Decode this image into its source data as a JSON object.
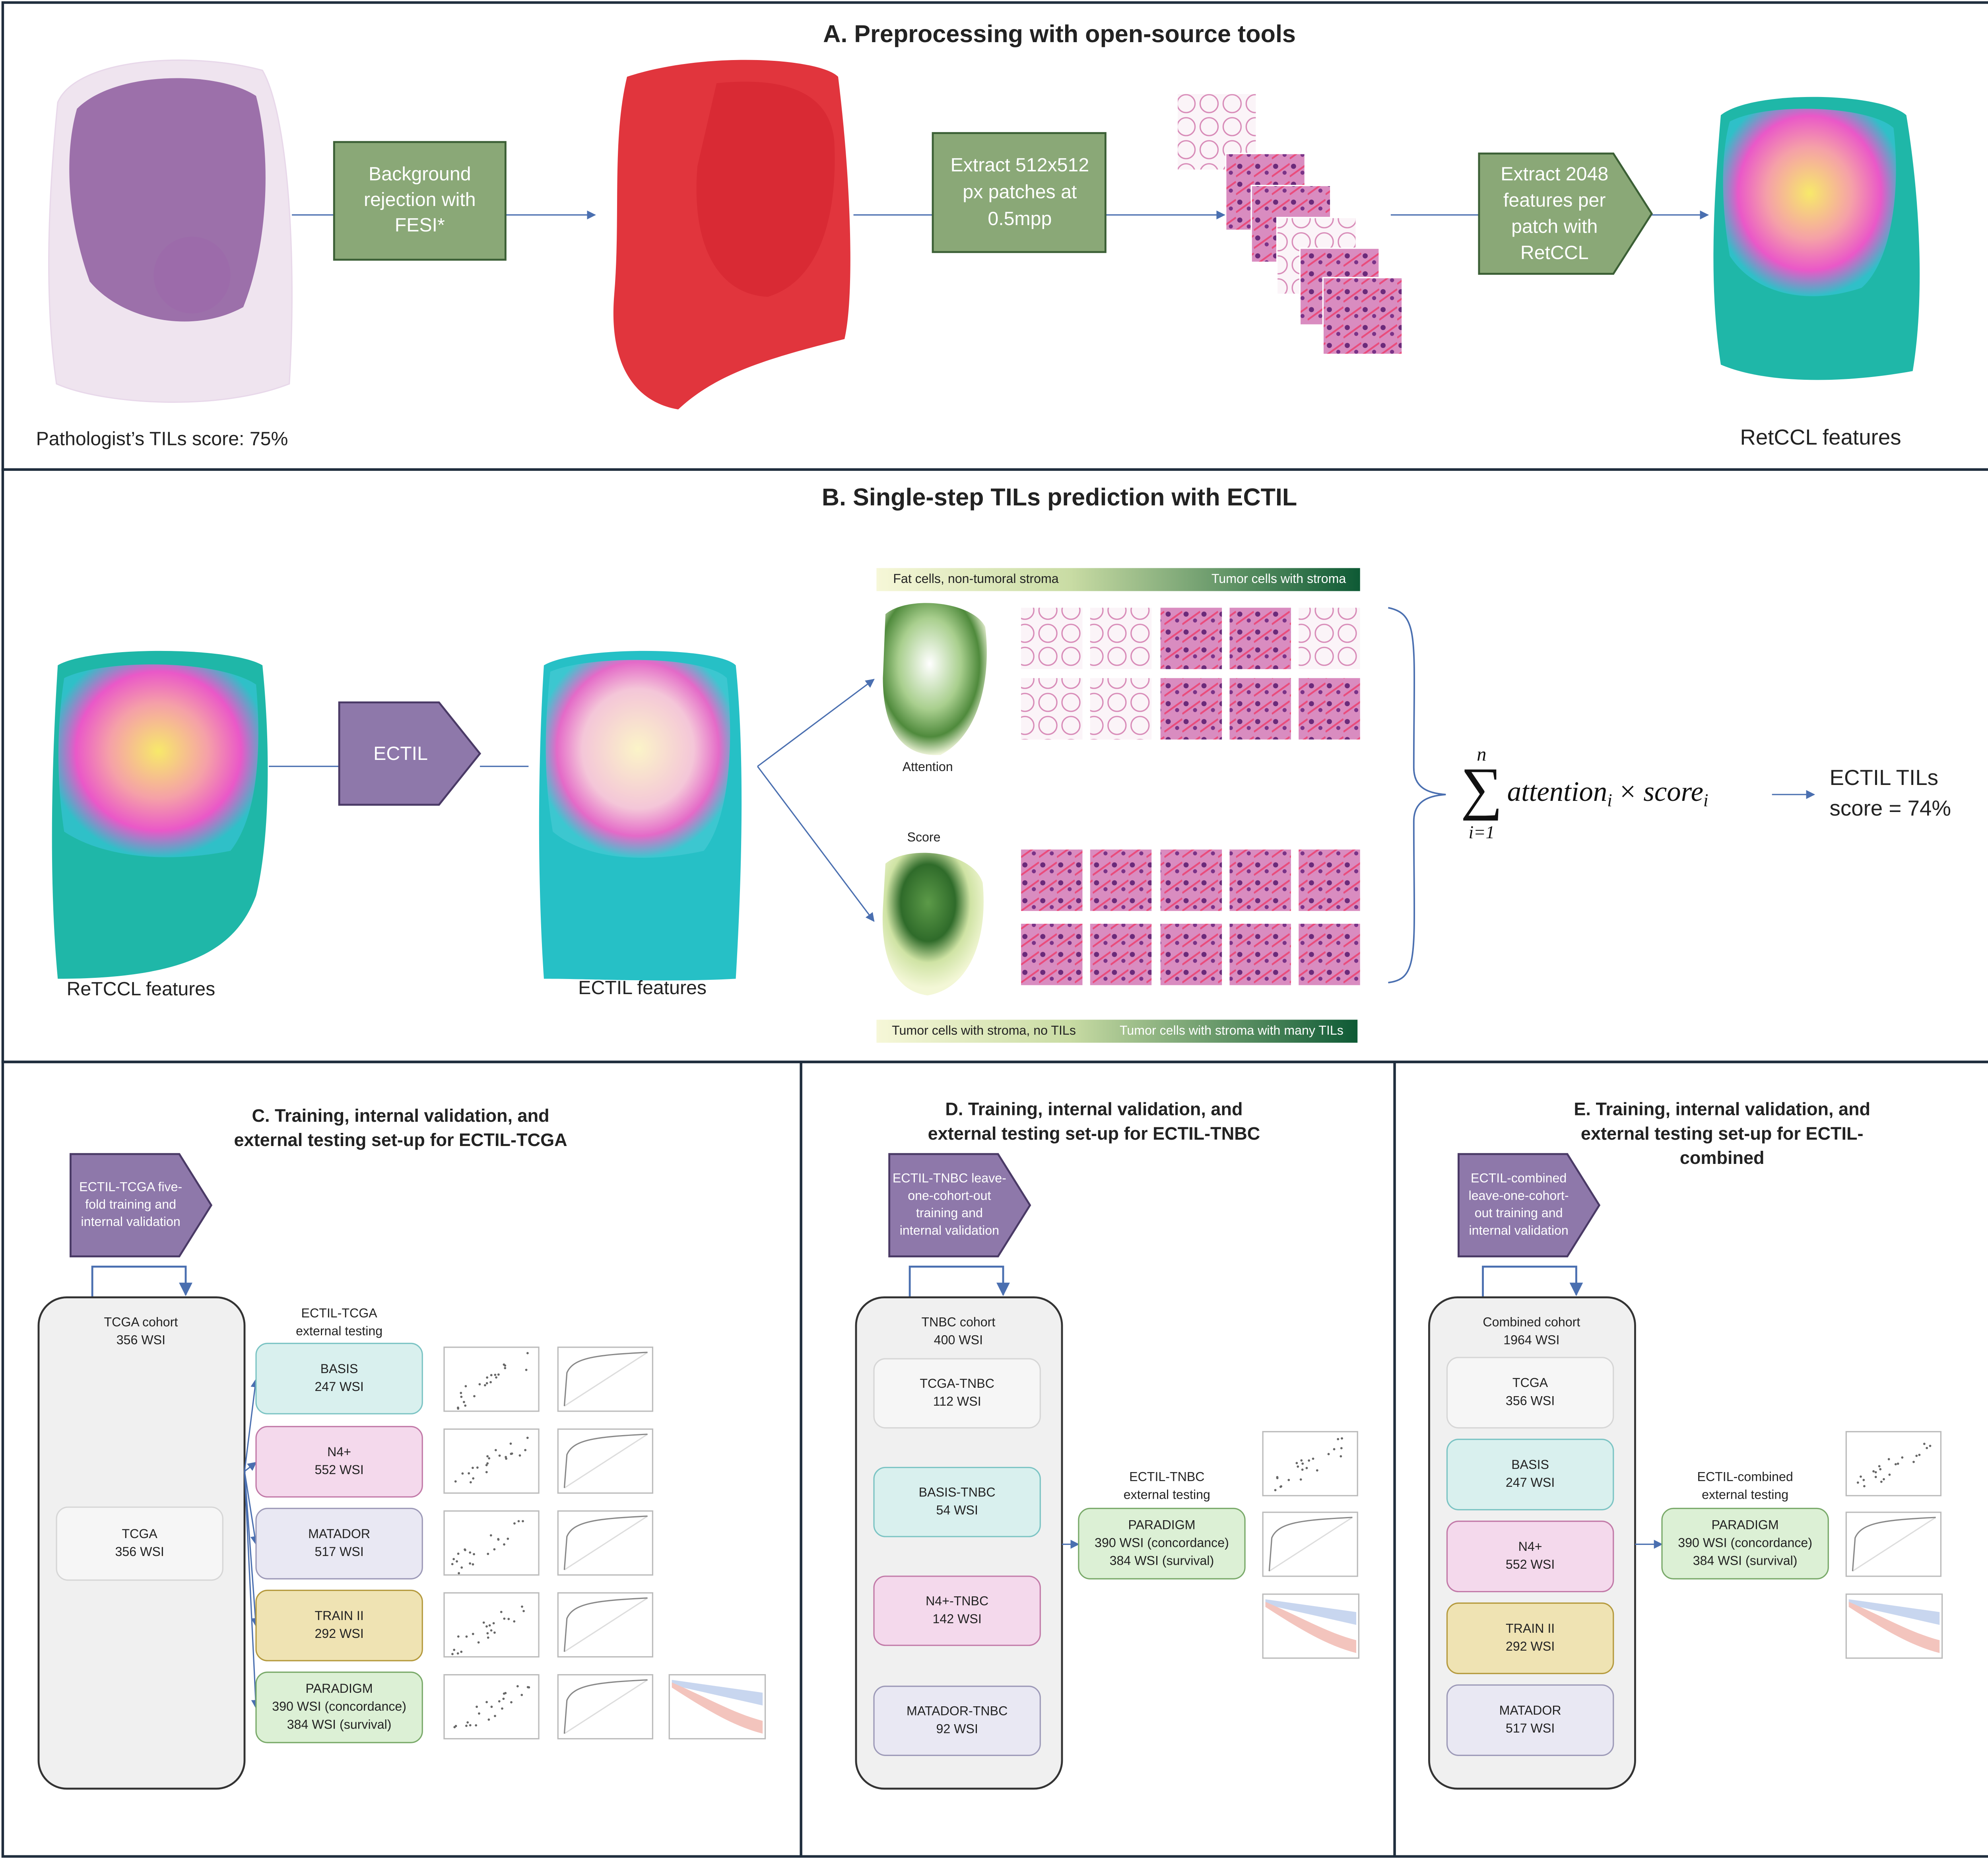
{
  "panel_a": {
    "title": "A. Preprocessing with open-source tools",
    "steps": [
      [
        "Background",
        "rejection with",
        "FESI*"
      ],
      [
        "Extract 512x512",
        "px patches at",
        "0.5mpp"
      ],
      [
        "Extract 2048",
        "features per",
        "patch with",
        "RetCCL"
      ]
    ],
    "left_caption": "Pathologist’s TILs score: 75%",
    "right_caption": "RetCCL features"
  },
  "panel_b": {
    "title": "B. Single-step TILs prediction with ECTIL",
    "model": "ECTIL",
    "left_caption": "ReTCCL features",
    "mid_caption": "ECTIL features",
    "attention_label": "Attention",
    "score_label": "Score",
    "attention_scale": [
      "Fat cells, non-tumoral stroma",
      "Tumor cells with stroma"
    ],
    "score_scale": [
      "Tumor cells with stroma, no TILs",
      "Tumor cells with stroma with many TILs"
    ],
    "formula": {
      "sum": "∑",
      "upper": "n",
      "lower": "i=1",
      "term1": "attention",
      "sub1": "i",
      "op": "×",
      "term2": "score",
      "sub2": "i"
    },
    "result": [
      "ECTIL TILs",
      "score = 74%"
    ]
  },
  "panel_c": {
    "title": [
      "C. Training, internal validation, and",
      "external testing set-up for ECTIL-TCGA"
    ],
    "model": [
      "ECTIL-TCGA five-",
      "fold training and",
      "internal validation"
    ],
    "cohort": {
      "title": [
        "TCGA cohort",
        "356 WSI"
      ],
      "subsets": [
        [
          "TCGA",
          "356 WSI"
        ]
      ]
    },
    "testing_label": [
      "ECTIL-TCGA",
      "external testing"
    ],
    "test_sets": [
      [
        "BASIS",
        "247 WSI"
      ],
      [
        "N4+",
        "552 WSI"
      ],
      [
        "MATADOR",
        "517 WSI"
      ],
      [
        "TRAIN II",
        "292 WSI"
      ],
      [
        "PARADIGM",
        "390 WSI (concordance)",
        "384 WSI (survival)"
      ]
    ]
  },
  "panel_d": {
    "title": [
      "D. Training, internal validation, and",
      "external testing set-up for ECTIL-TNBC"
    ],
    "model": [
      "ECTIL-TNBC leave-",
      "one-cohort-out",
      "training and",
      "internal validation"
    ],
    "cohort": {
      "title": [
        "TNBC cohort",
        "400 WSI"
      ],
      "subsets": [
        [
          "TCGA-TNBC",
          "112 WSI"
        ],
        [
          "BASIS-TNBC",
          "54 WSI"
        ],
        [
          "N4+-TNBC",
          "142 WSI"
        ],
        [
          "MATADOR-TNBC",
          "92 WSI"
        ]
      ]
    },
    "testing_label": [
      "ECTIL-TNBC",
      "external testing"
    ],
    "test_sets": [
      [
        "PARADIGM",
        "390 WSI (concordance)",
        "384 WSI (survival)"
      ]
    ]
  },
  "panel_e": {
    "title": [
      "E. Training, internal validation, and",
      "external testing set-up for ECTIL-",
      "combined"
    ],
    "model": [
      "ECTIL-combined",
      "leave-one-cohort-",
      "out training and",
      "internal validation"
    ],
    "cohort": {
      "title": [
        "Combined cohort",
        "1964 WSI"
      ],
      "subsets": [
        [
          "TCGA",
          "356 WSI"
        ],
        [
          "BASIS",
          "247 WSI"
        ],
        [
          "N4+",
          "552 WSI"
        ],
        [
          "TRAIN II",
          "292 WSI"
        ],
        [
          "MATADOR",
          "517 WSI"
        ]
      ]
    },
    "testing_label": [
      "ECTIL-combined",
      "external testing"
    ],
    "test_sets": [
      [
        "PARADIGM",
        "390 WSI (concordance)",
        "384 WSI (survival)"
      ]
    ]
  }
}
